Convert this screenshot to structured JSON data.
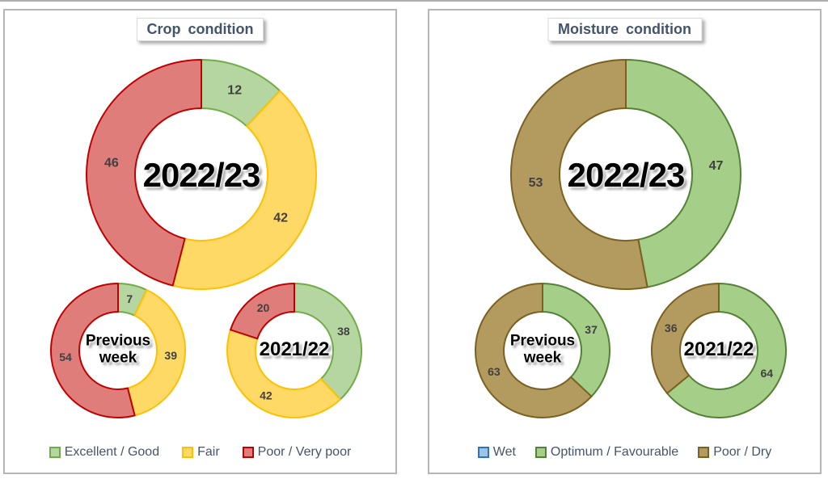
{
  "page": {
    "background": "#ffffff"
  },
  "panels": [
    {
      "title": "Crop condition",
      "legend": [
        {
          "label": "Excellent / Good",
          "fill": "#b5d6a1",
          "stroke": "#70ad47"
        },
        {
          "label": "Fair",
          "fill": "#ffd966",
          "stroke": "#ffc000"
        },
        {
          "label": "Poor / Very poor",
          "fill": "#df7d7b",
          "stroke": "#c00000"
        }
      ]
    },
    {
      "title": "Moisture condition",
      "legend": [
        {
          "label": "Wet",
          "fill": "#9dc3e6",
          "stroke": "#2e75b6"
        },
        {
          "label": "Optimum / Favourable",
          "fill": "#a5ce89",
          "stroke": "#538135"
        },
        {
          "label": "Poor / Dry",
          "fill": "#b39a5f",
          "stroke": "#7a6121"
        }
      ]
    }
  ],
  "chart_data": [
    {
      "type": "pie",
      "panel": "Crop condition",
      "name": "2022/23",
      "center_label": "2022/23",
      "categories": [
        "Excellent / Good",
        "Fair",
        "Poor / Very poor"
      ],
      "values": [
        12,
        42,
        46
      ],
      "layout_hint": "donut, slices clockwise from 12 o'clock, values shown mid-ring"
    },
    {
      "type": "pie",
      "panel": "Crop condition",
      "name": "Previous week",
      "center_label": "Previous\nweek",
      "categories": [
        "Excellent / Good",
        "Fair",
        "Poor / Very poor"
      ],
      "values": [
        7,
        39,
        54
      ],
      "layout_hint": "donut, slices clockwise from 12 o'clock"
    },
    {
      "type": "pie",
      "panel": "Crop condition",
      "name": "2021/22",
      "center_label": "2021/22",
      "categories": [
        "Excellent / Good",
        "Fair",
        "Poor / Very poor"
      ],
      "values": [
        38,
        42,
        20
      ],
      "layout_hint": "donut, slices clockwise from 12 o'clock"
    },
    {
      "type": "pie",
      "panel": "Moisture condition",
      "name": "2022/23",
      "center_label": "2022/23",
      "categories": [
        "Wet",
        "Optimum / Favourable",
        "Poor / Dry"
      ],
      "values": [
        0,
        47,
        53
      ],
      "layout_hint": "donut, slices clockwise from 12 o'clock"
    },
    {
      "type": "pie",
      "panel": "Moisture condition",
      "name": "Previous week",
      "center_label": "Previous\nweek",
      "categories": [
        "Wet",
        "Optimum / Favourable",
        "Poor / Dry"
      ],
      "values": [
        0,
        37,
        63
      ],
      "layout_hint": "donut, slices clockwise from 12 o'clock"
    },
    {
      "type": "pie",
      "panel": "Moisture condition",
      "name": "2021/22",
      "center_label": "2021/22",
      "categories": [
        "Wet",
        "Optimum / Favourable",
        "Poor / Dry"
      ],
      "values": [
        0,
        64,
        36
      ],
      "layout_hint": "donut, slices clockwise from 12 o'clock"
    }
  ]
}
